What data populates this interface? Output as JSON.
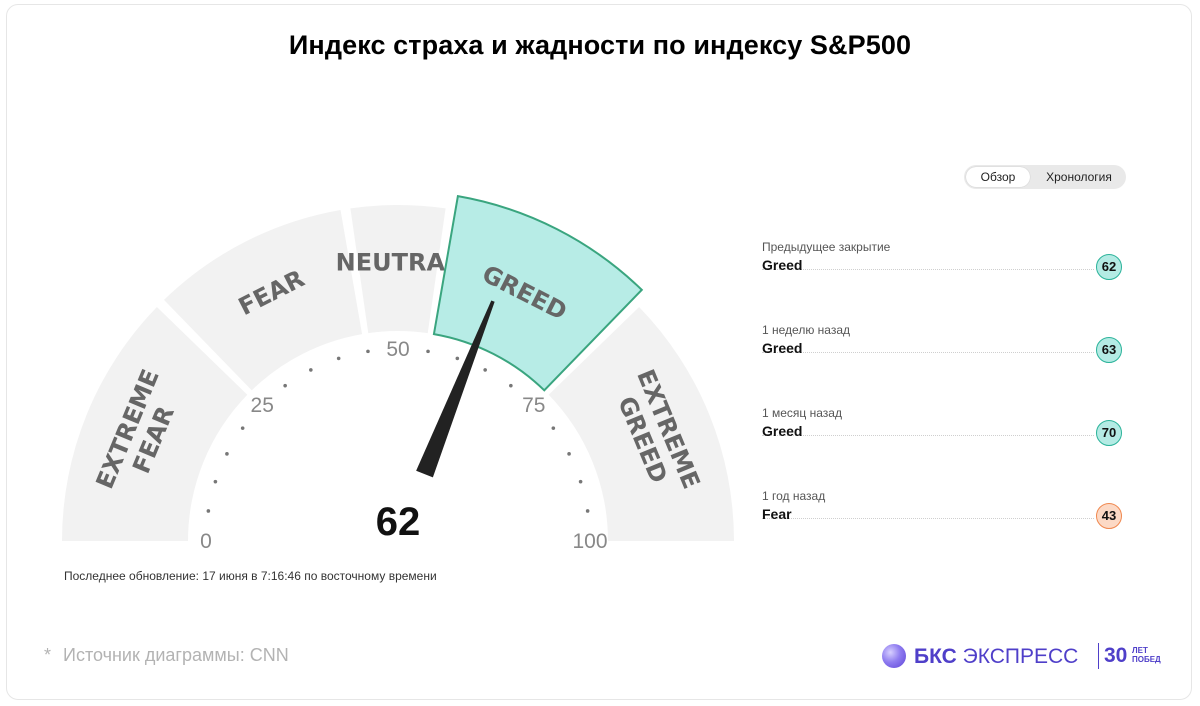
{
  "title": "Индекс страха и жадности по индексу S&P500",
  "toggle": {
    "overview": "Обзор",
    "timeline": "Хронология"
  },
  "updated": "Последнее обновление: 17 июня в 7:16:46 по восточному времени",
  "history": [
    {
      "label": "Предыдущее закрытие",
      "rating": "Greed",
      "value": "62",
      "color": "#b4ebe4",
      "border": "#2bb39a"
    },
    {
      "label": "1 неделю назад",
      "rating": "Greed",
      "value": "63",
      "color": "#b4ebe4",
      "border": "#2bb39a"
    },
    {
      "label": "1 месяц назад",
      "rating": "Greed",
      "value": "70",
      "color": "#b4ebe4",
      "border": "#2bb39a"
    },
    {
      "label": "1 год назад",
      "rating": "Fear",
      "value": "43",
      "color": "#fcd9c5",
      "border": "#f0884f"
    }
  ],
  "source": {
    "star": "*",
    "text": "Источник диаграммы: CNN"
  },
  "logo": {
    "brand": "БКС",
    "name": "ЭКСПРЕСС",
    "num": "30",
    "sub1": "ЛЕТ",
    "sub2": "ПОБЕД"
  },
  "colors": {
    "active_fill": "#b7ece6",
    "active_stroke": "#3aa57f",
    "segment": "#f2f2f2",
    "needle": "#222222"
  },
  "chart_data": {
    "type": "gauge",
    "value": 62,
    "min": 0,
    "max": 100,
    "ticks": [
      "0",
      "25",
      "50",
      "75",
      "100"
    ],
    "tick_values": [
      0,
      25,
      50,
      75,
      100
    ],
    "active_segment": 3,
    "segments": [
      {
        "name": "EXTREME FEAR",
        "lines": [
          "EXTREME",
          "FEAR"
        ],
        "from": 0,
        "to": 25
      },
      {
        "name": "FEAR",
        "lines": [
          "FEAR"
        ],
        "from": 25,
        "to": 45
      },
      {
        "name": "NEUTRAL",
        "lines": [
          "NEUTRAL"
        ],
        "from": 45,
        "to": 55
      },
      {
        "name": "GREED",
        "lines": [
          "GREED"
        ],
        "from": 55,
        "to": 75
      },
      {
        "name": "EXTREME GREED",
        "lines": [
          "EXTREME",
          "GREED"
        ],
        "from": 75,
        "to": 100
      }
    ]
  }
}
